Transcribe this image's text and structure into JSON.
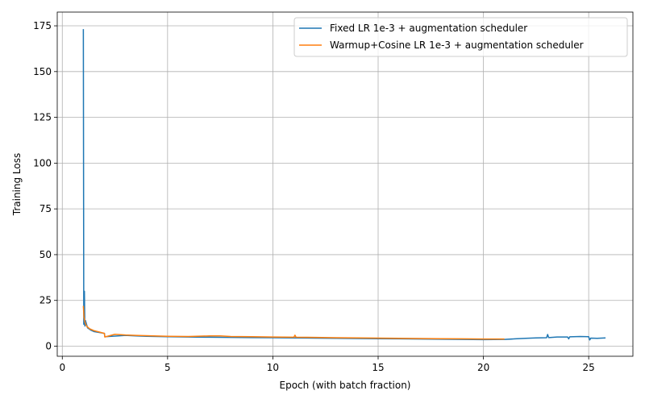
{
  "chart_data": {
    "type": "line",
    "title": "",
    "xlabel": "Epoch (with batch fraction)",
    "ylabel": "Training Loss",
    "xlim": [
      -0.24,
      27.1
    ],
    "ylim": [
      -5.5,
      182.5
    ],
    "xticks": [
      0,
      5,
      10,
      15,
      20,
      25
    ],
    "yticks": [
      0,
      25,
      50,
      75,
      100,
      125,
      150,
      175
    ],
    "grid": true,
    "legend_position": "top-right",
    "series": [
      {
        "name": "Fixed LR 1e-3 + augmentation scheduler",
        "color": "#1f77b4",
        "points": [
          [
            1.0,
            173.2
          ],
          [
            1.02,
            12.0
          ],
          [
            1.05,
            30.0
          ],
          [
            1.07,
            11.0
          ],
          [
            1.1,
            14.0
          ],
          [
            1.2,
            10.0
          ],
          [
            1.35,
            8.8
          ],
          [
            1.5,
            8.0
          ],
          [
            1.7,
            7.6
          ],
          [
            2.0,
            7.0
          ],
          [
            2.02,
            5.2
          ],
          [
            2.5,
            5.5
          ],
          [
            3.0,
            5.9
          ],
          [
            3.5,
            5.6
          ],
          [
            4.0,
            5.4
          ],
          [
            5.0,
            5.2
          ],
          [
            6.0,
            5.0
          ],
          [
            7.0,
            4.9
          ],
          [
            8.0,
            4.8
          ],
          [
            9.0,
            4.7
          ],
          [
            10.0,
            4.6
          ],
          [
            11.0,
            4.5
          ],
          [
            12.0,
            4.4
          ],
          [
            13.0,
            4.3
          ],
          [
            14.0,
            4.2
          ],
          [
            15.0,
            4.1
          ],
          [
            16.0,
            4.0
          ],
          [
            17.0,
            3.9
          ],
          [
            18.0,
            3.8
          ],
          [
            19.0,
            3.7
          ],
          [
            20.0,
            3.6
          ],
          [
            21.0,
            3.7
          ],
          [
            21.5,
            4.0
          ],
          [
            22.0,
            4.3
          ],
          [
            22.5,
            4.5
          ],
          [
            23.0,
            4.6
          ],
          [
            23.05,
            6.4
          ],
          [
            23.1,
            4.7
          ],
          [
            23.5,
            5.0
          ],
          [
            24.0,
            5.0
          ],
          [
            24.05,
            4.0
          ],
          [
            24.1,
            5.1
          ],
          [
            24.6,
            5.3
          ],
          [
            25.0,
            5.2
          ],
          [
            25.05,
            3.4
          ],
          [
            25.1,
            4.4
          ],
          [
            25.4,
            4.3
          ],
          [
            25.8,
            4.5
          ]
        ]
      },
      {
        "name": "Warmup+Cosine LR 1e-3 + augmentation scheduler",
        "color": "#ff7f0e",
        "points": [
          [
            1.0,
            22.0
          ],
          [
            1.03,
            16.0
          ],
          [
            1.08,
            13.0
          ],
          [
            1.15,
            11.0
          ],
          [
            1.3,
            9.5
          ],
          [
            1.5,
            8.5
          ],
          [
            1.8,
            7.6
          ],
          [
            2.0,
            7.0
          ],
          [
            2.02,
            5.0
          ],
          [
            2.5,
            6.5
          ],
          [
            3.0,
            6.1
          ],
          [
            3.5,
            5.9
          ],
          [
            4.0,
            5.7
          ],
          [
            5.0,
            5.4
          ],
          [
            6.0,
            5.3
          ],
          [
            7.0,
            5.6
          ],
          [
            7.5,
            5.6
          ],
          [
            8.0,
            5.3
          ],
          [
            9.0,
            5.2
          ],
          [
            10.0,
            5.0
          ],
          [
            11.0,
            4.9
          ],
          [
            11.05,
            6.0
          ],
          [
            11.1,
            4.9
          ],
          [
            12.0,
            4.8
          ],
          [
            13.0,
            4.6
          ],
          [
            14.0,
            4.5
          ],
          [
            15.0,
            4.4
          ],
          [
            16.0,
            4.3
          ],
          [
            17.0,
            4.2
          ],
          [
            18.0,
            4.1
          ],
          [
            19.0,
            4.0
          ],
          [
            20.0,
            3.9
          ],
          [
            21.0,
            3.9
          ]
        ]
      }
    ]
  }
}
